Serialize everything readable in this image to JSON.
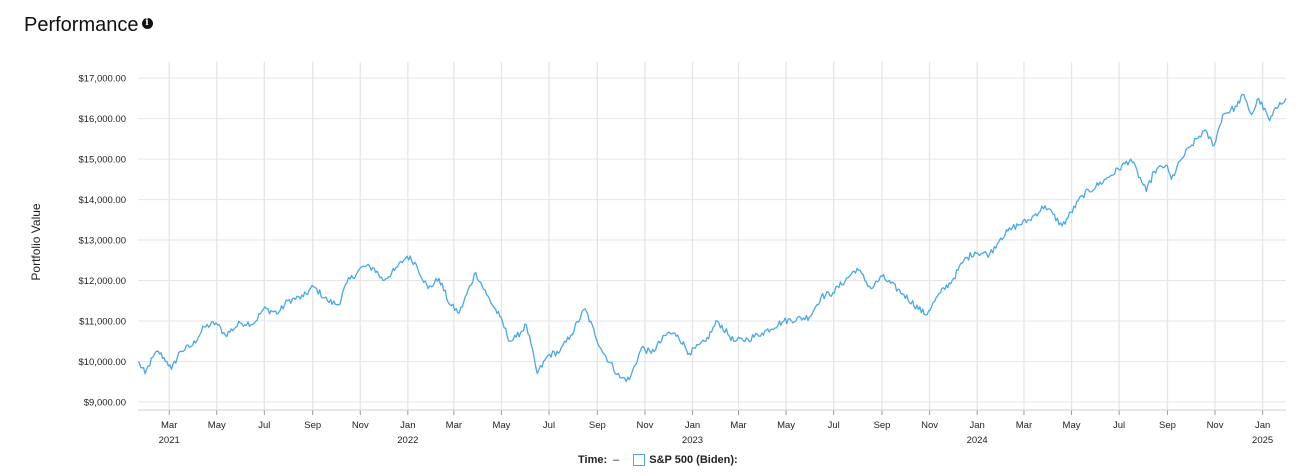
{
  "header": {
    "title": "Performance",
    "info_icon": "info-icon"
  },
  "footer": {
    "time_label": "Time:",
    "time_value": "–",
    "legend_label": "S&P 500 (Biden):"
  },
  "colors": {
    "line": "#4aa8e8",
    "grid": "#e6e6e6"
  },
  "chart_data": {
    "type": "line",
    "title": "Performance",
    "ylabel": "Portfolio Value",
    "xlabel": "",
    "ylim": [
      8800,
      17400
    ],
    "xlim": [
      "2021-01-20",
      "2025-01-31"
    ],
    "y_ticks": [
      {
        "value": 9000,
        "label": "$9,000.00"
      },
      {
        "value": 10000,
        "label": "$10,000.00"
      },
      {
        "value": 11000,
        "label": "$11,000.00"
      },
      {
        "value": 12000,
        "label": "$12,000.00"
      },
      {
        "value": 13000,
        "label": "$13,000.00"
      },
      {
        "value": 14000,
        "label": "$14,000.00"
      },
      {
        "value": 15000,
        "label": "$15,000.00"
      },
      {
        "value": 16000,
        "label": "$16,000.00"
      },
      {
        "value": 17000,
        "label": "$17,000.00"
      }
    ],
    "x_ticks": [
      {
        "date": "2021-03-01",
        "label": "Mar",
        "year": "2021"
      },
      {
        "date": "2021-05-01",
        "label": "May",
        "year": ""
      },
      {
        "date": "2021-07-01",
        "label": "Jul",
        "year": ""
      },
      {
        "date": "2021-09-01",
        "label": "Sep",
        "year": ""
      },
      {
        "date": "2021-11-01",
        "label": "Nov",
        "year": ""
      },
      {
        "date": "2022-01-01",
        "label": "Jan",
        "year": "2022"
      },
      {
        "date": "2022-03-01",
        "label": "Mar",
        "year": ""
      },
      {
        "date": "2022-05-01",
        "label": "May",
        "year": ""
      },
      {
        "date": "2022-07-01",
        "label": "Jul",
        "year": ""
      },
      {
        "date": "2022-09-01",
        "label": "Sep",
        "year": ""
      },
      {
        "date": "2022-11-01",
        "label": "Nov",
        "year": ""
      },
      {
        "date": "2023-01-01",
        "label": "Jan",
        "year": "2023"
      },
      {
        "date": "2023-03-01",
        "label": "Mar",
        "year": ""
      },
      {
        "date": "2023-05-01",
        "label": "May",
        "year": ""
      },
      {
        "date": "2023-07-01",
        "label": "Jul",
        "year": ""
      },
      {
        "date": "2023-09-01",
        "label": "Sep",
        "year": ""
      },
      {
        "date": "2023-11-01",
        "label": "Nov",
        "year": ""
      },
      {
        "date": "2024-01-01",
        "label": "Jan",
        "year": "2024"
      },
      {
        "date": "2024-03-01",
        "label": "Mar",
        "year": ""
      },
      {
        "date": "2024-05-01",
        "label": "May",
        "year": ""
      },
      {
        "date": "2024-07-01",
        "label": "Jul",
        "year": ""
      },
      {
        "date": "2024-09-01",
        "label": "Sep",
        "year": ""
      },
      {
        "date": "2024-11-01",
        "label": "Nov",
        "year": ""
      },
      {
        "date": "2025-01-01",
        "label": "Jan",
        "year": "2025"
      }
    ],
    "series": [
      {
        "name": "S&P 500 (Biden)",
        "points": [
          [
            "2021-01-20",
            10000
          ],
          [
            "2021-01-29",
            9700
          ],
          [
            "2021-02-08",
            10100
          ],
          [
            "2021-02-15",
            10250
          ],
          [
            "2021-02-26",
            10000
          ],
          [
            "2021-03-04",
            9800
          ],
          [
            "2021-03-15",
            10250
          ],
          [
            "2021-03-31",
            10400
          ],
          [
            "2021-04-15",
            10850
          ],
          [
            "2021-04-30",
            10950
          ],
          [
            "2021-05-12",
            10650
          ],
          [
            "2021-05-31",
            10950
          ],
          [
            "2021-06-18",
            10950
          ],
          [
            "2021-06-30",
            11300
          ],
          [
            "2021-07-19",
            11200
          ],
          [
            "2021-07-31",
            11500
          ],
          [
            "2021-08-20",
            11600
          ],
          [
            "2021-09-02",
            11850
          ],
          [
            "2021-09-20",
            11500
          ],
          [
            "2021-10-04",
            11400
          ],
          [
            "2021-10-15",
            11950
          ],
          [
            "2021-11-05",
            12350
          ],
          [
            "2021-11-19",
            12300
          ],
          [
            "2021-11-30",
            12000
          ],
          [
            "2021-12-15",
            12250
          ],
          [
            "2021-12-31",
            12600
          ],
          [
            "2022-01-10",
            12450
          ],
          [
            "2022-01-27",
            11800
          ],
          [
            "2022-02-10",
            12050
          ],
          [
            "2022-02-24",
            11400
          ],
          [
            "2022-03-08",
            11200
          ],
          [
            "2022-03-29",
            12200
          ],
          [
            "2022-04-12",
            11650
          ],
          [
            "2022-04-29",
            11100
          ],
          [
            "2022-05-12",
            10500
          ],
          [
            "2022-05-20",
            10600
          ],
          [
            "2022-06-02",
            10900
          ],
          [
            "2022-06-16",
            9700
          ],
          [
            "2022-06-30",
            10150
          ],
          [
            "2022-07-15",
            10250
          ],
          [
            "2022-07-29",
            10650
          ],
          [
            "2022-08-16",
            11300
          ],
          [
            "2022-09-06",
            10300
          ],
          [
            "2022-09-30",
            9600
          ],
          [
            "2022-10-12",
            9550
          ],
          [
            "2022-10-28",
            10350
          ],
          [
            "2022-11-09",
            10200
          ],
          [
            "2022-11-30",
            10700
          ],
          [
            "2022-12-13",
            10650
          ],
          [
            "2022-12-28",
            10200
          ],
          [
            "2023-01-18",
            10500
          ],
          [
            "2023-02-02",
            11000
          ],
          [
            "2023-02-23",
            10500
          ],
          [
            "2023-03-13",
            10550
          ],
          [
            "2023-03-31",
            10700
          ],
          [
            "2023-04-28",
            11000
          ],
          [
            "2023-05-31",
            11100
          ],
          [
            "2023-06-15",
            11600
          ],
          [
            "2023-06-30",
            11700
          ],
          [
            "2023-07-31",
            12300
          ],
          [
            "2023-08-18",
            11800
          ],
          [
            "2023-09-01",
            12100
          ],
          [
            "2023-09-29",
            11650
          ],
          [
            "2023-10-27",
            11150
          ],
          [
            "2023-11-15",
            11700
          ],
          [
            "2023-11-30",
            12000
          ],
          [
            "2023-12-15",
            12500
          ],
          [
            "2023-12-29",
            12700
          ],
          [
            "2024-01-17",
            12650
          ],
          [
            "2024-01-31",
            13050
          ],
          [
            "2024-02-15",
            13300
          ],
          [
            "2024-03-08",
            13500
          ],
          [
            "2024-03-28",
            13850
          ],
          [
            "2024-04-19",
            13350
          ],
          [
            "2024-05-15",
            14100
          ],
          [
            "2024-06-14",
            14500
          ],
          [
            "2024-07-16",
            15000
          ],
          [
            "2024-08-05",
            14200
          ],
          [
            "2024-08-15",
            14700
          ],
          [
            "2024-08-30",
            14850
          ],
          [
            "2024-09-06",
            14500
          ],
          [
            "2024-09-19",
            15000
          ],
          [
            "2024-09-30",
            15300
          ],
          [
            "2024-10-18",
            15700
          ],
          [
            "2024-10-31",
            15350
          ],
          [
            "2024-11-11",
            16100
          ],
          [
            "2024-11-29",
            16300
          ],
          [
            "2024-12-06",
            16600
          ],
          [
            "2024-12-18",
            16100
          ],
          [
            "2024-12-27",
            16500
          ],
          [
            "2025-01-10",
            15950
          ],
          [
            "2025-01-23",
            16400
          ],
          [
            "2025-01-31",
            16500
          ]
        ]
      }
    ]
  }
}
